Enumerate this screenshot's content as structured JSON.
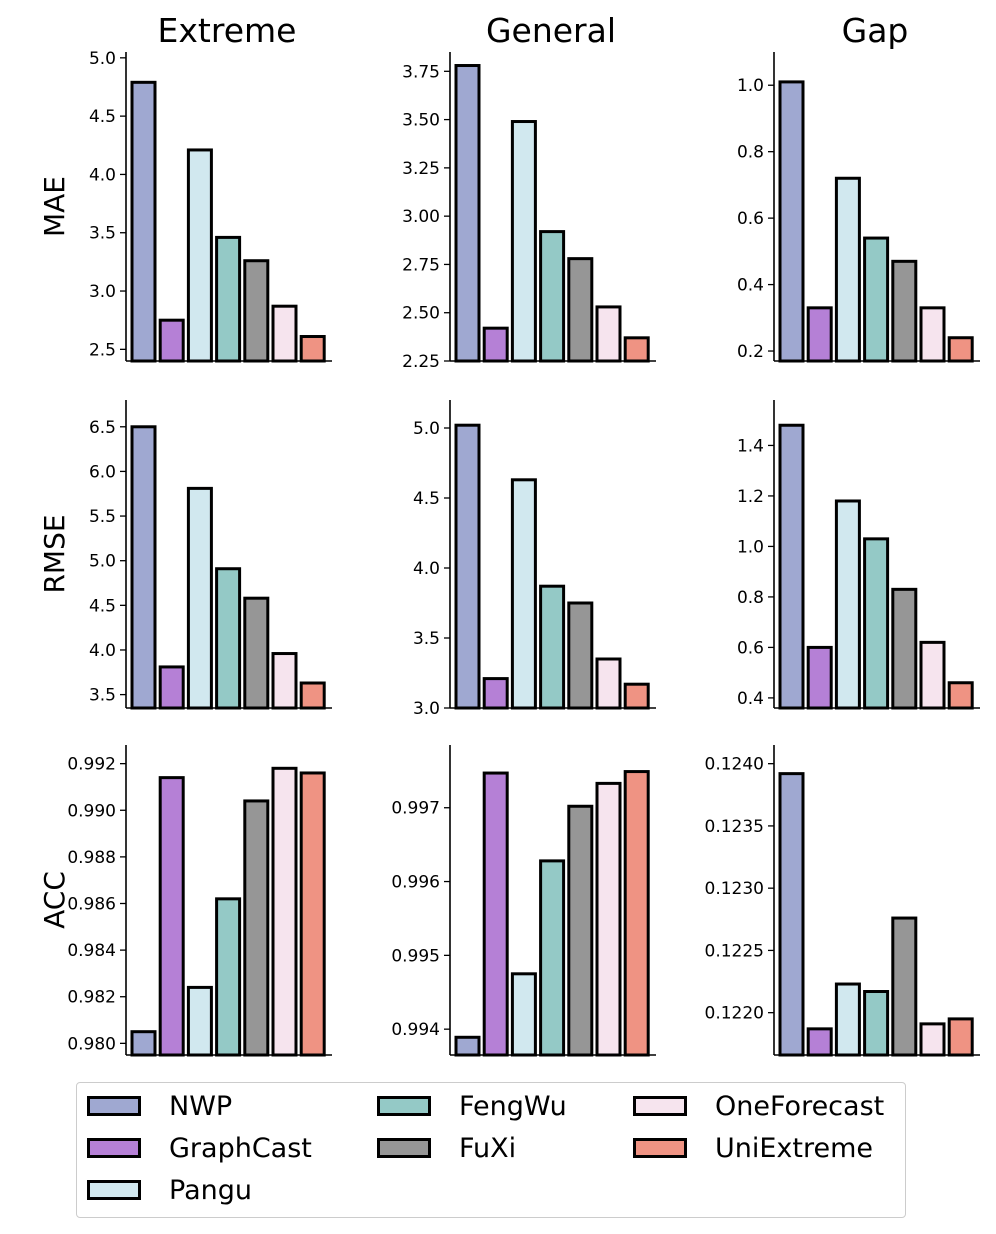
{
  "chart_data": {
    "type": "bar",
    "columns": [
      "Extreme",
      "General",
      "Gap"
    ],
    "rows": [
      "MAE",
      "RMSE",
      "ACC"
    ],
    "series": [
      {
        "name": "NWP",
        "color": "#9fa8d1"
      },
      {
        "name": "GraphCast",
        "color": "#b580d6"
      },
      {
        "name": "Pangu",
        "color": "#d1e8ef"
      },
      {
        "name": "FengWu",
        "color": "#94c9c6"
      },
      {
        "name": "FuXi",
        "color": "#969696"
      },
      {
        "name": "OneForecast",
        "color": "#f6e4ee"
      },
      {
        "name": "UniExtreme",
        "color": "#ef9383"
      }
    ],
    "panels": [
      {
        "id": "mae-extreme",
        "row": "MAE",
        "column": "Extreme",
        "ylim": [
          2.4,
          5.05
        ],
        "ticks": [
          "2.5",
          "3.0",
          "3.5",
          "4.0",
          "4.5",
          "5.0"
        ],
        "values": [
          4.79,
          2.75,
          4.21,
          3.46,
          3.26,
          2.87,
          2.61
        ]
      },
      {
        "id": "mae-general",
        "row": "MAE",
        "column": "General",
        "ylim": [
          2.25,
          3.85
        ],
        "ticks": [
          "2.25",
          "2.50",
          "2.75",
          "3.00",
          "3.25",
          "3.50",
          "3.75"
        ],
        "values": [
          3.78,
          2.42,
          3.49,
          2.92,
          2.78,
          2.53,
          2.37
        ]
      },
      {
        "id": "mae-gap",
        "row": "MAE",
        "column": "Gap",
        "ylim": [
          0.17,
          1.1
        ],
        "ticks": [
          "0.2",
          "0.4",
          "0.6",
          "0.8",
          "1.0"
        ],
        "values": [
          1.01,
          0.33,
          0.72,
          0.54,
          0.47,
          0.33,
          0.24
        ]
      },
      {
        "id": "rmse-extreme",
        "row": "RMSE",
        "column": "Extreme",
        "ylim": [
          3.35,
          6.8
        ],
        "ticks": [
          "3.5",
          "4.0",
          "4.5",
          "5.0",
          "5.5",
          "6.0",
          "6.5"
        ],
        "values": [
          6.5,
          3.81,
          5.81,
          4.91,
          4.58,
          3.96,
          3.63
        ]
      },
      {
        "id": "rmse-general",
        "row": "RMSE",
        "column": "General",
        "ylim": [
          3.0,
          5.2
        ],
        "ticks": [
          "3.0",
          "3.5",
          "4.0",
          "4.5",
          "5.0"
        ],
        "values": [
          5.02,
          3.21,
          4.63,
          3.87,
          3.75,
          3.35,
          3.17
        ]
      },
      {
        "id": "rmse-gap",
        "row": "RMSE",
        "column": "Gap",
        "ylim": [
          0.36,
          1.58
        ],
        "ticks": [
          "0.4",
          "0.6",
          "0.8",
          "1.0",
          "1.2",
          "1.4"
        ],
        "values": [
          1.48,
          0.6,
          1.18,
          1.03,
          0.83,
          0.62,
          0.46
        ]
      },
      {
        "id": "acc-extreme",
        "row": "ACC",
        "column": "Extreme",
        "ylim": [
          0.9795,
          0.9928
        ],
        "ticks": [
          "0.980",
          "0.982",
          "0.984",
          "0.986",
          "0.988",
          "0.990",
          "0.992"
        ],
        "values": [
          0.9805,
          0.9914,
          0.9824,
          0.9862,
          0.9904,
          0.9918,
          0.9916
        ]
      },
      {
        "id": "acc-general",
        "row": "ACC",
        "column": "General",
        "ylim": [
          0.99365,
          0.99785
        ],
        "ticks": [
          "0.994",
          "0.995",
          "0.996",
          "0.997"
        ],
        "values": [
          0.99389,
          0.99747,
          0.99475,
          0.99628,
          0.99702,
          0.99733,
          0.99749
        ]
      },
      {
        "id": "acc-gap",
        "row": "ACC",
        "column": "Gap",
        "ylim": [
          0.12166,
          0.12415
        ],
        "ticks": [
          "0.1220",
          "0.1225",
          "0.1230",
          "0.1235",
          "0.1240"
        ],
        "values": [
          0.12392,
          0.12187,
          0.12223,
          0.12217,
          0.12276,
          0.12191,
          0.12195
        ]
      }
    ]
  }
}
